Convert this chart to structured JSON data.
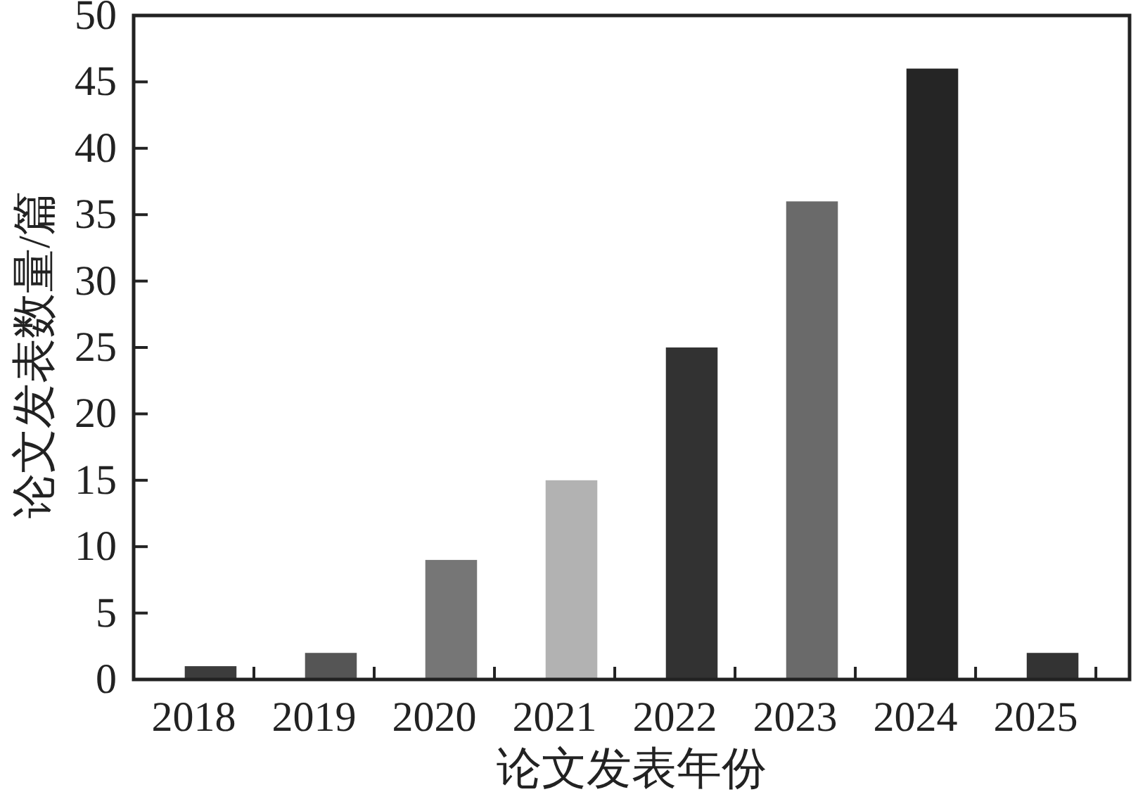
{
  "chart_data": {
    "type": "bar",
    "xlabel": "论文发表年份",
    "ylabel": "论文发表数量/篇",
    "categories": [
      "2018",
      "2019",
      "2020",
      "2021",
      "2022",
      "2023",
      "2024",
      "2025"
    ],
    "values": [
      1,
      2,
      9,
      15,
      25,
      36,
      46,
      2
    ],
    "colors": [
      "#3c3c3c",
      "#555555",
      "#767676",
      "#b2b2b2",
      "#323232",
      "#6a6a6a",
      "#252525",
      "#333333"
    ],
    "ylim": [
      0,
      50
    ],
    "yticks": [
      0,
      5,
      10,
      15,
      20,
      25,
      30,
      35,
      40,
      45,
      50
    ]
  }
}
